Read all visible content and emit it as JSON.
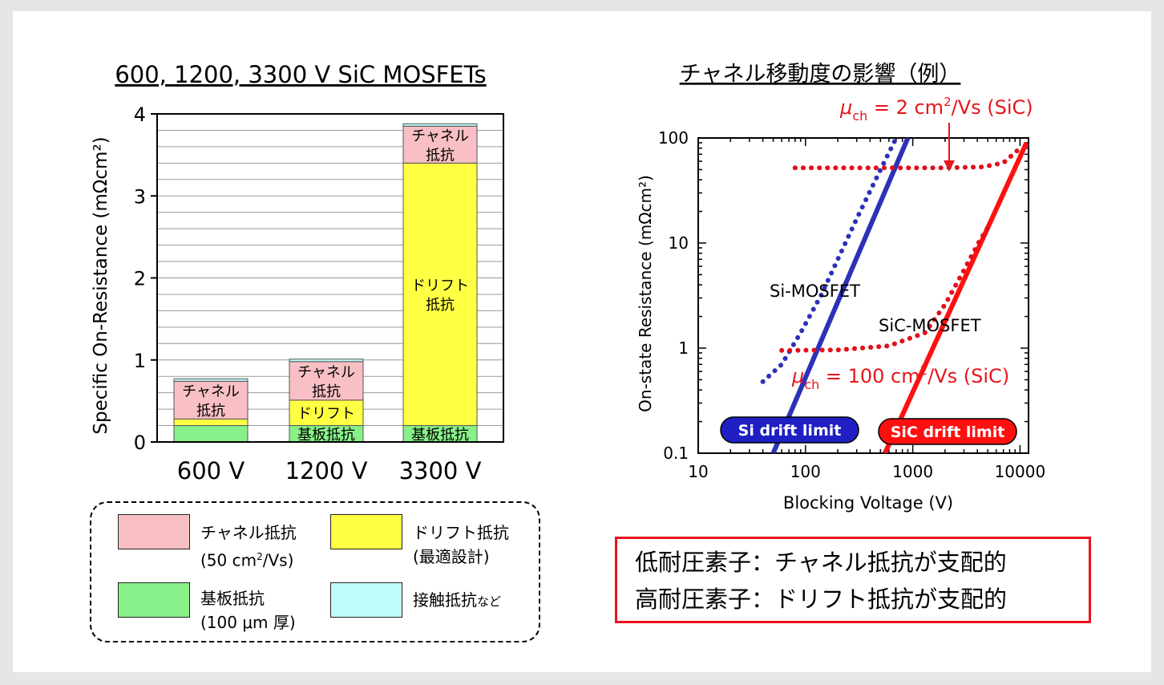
{
  "chart_data": [
    {
      "type": "bar",
      "stacked": true,
      "title": "600, 1200, 3300 V SiC MOSFETs",
      "ylabel": "Specific On-Resistance (mΩcm²)",
      "ylim": [
        0,
        4
      ],
      "yticks": [
        "0",
        "1",
        "2",
        "3",
        "4"
      ],
      "grid": "horizontal",
      "categories": [
        "600 V",
        "1200 V",
        "3300 V"
      ],
      "series": [
        {
          "name": "基板抵抗",
          "color": "#88f088",
          "values": [
            0.2,
            0.2,
            0.2
          ]
        },
        {
          "name": "ドリフト抵抗",
          "color": "#ffff44",
          "values": [
            0.08,
            0.31,
            3.2
          ]
        },
        {
          "name": "チャネル抵抗",
          "color": "#f8c0c4",
          "values": [
            0.46,
            0.47,
            0.45
          ]
        },
        {
          "name": "接触抵抗など",
          "color": "#c0fcfc",
          "values": [
            0.03,
            0.03,
            0.03
          ]
        }
      ],
      "segment_labels": [
        [
          "",
          "",
          "チャネル\n抵抗",
          ""
        ],
        [
          "基板抵抗",
          "ドリフト",
          "チャネル\n抵抗",
          ""
        ],
        [
          "基板抵抗",
          "ドリフト\n抵抗",
          "チャネル\n抵抗",
          ""
        ]
      ]
    },
    {
      "type": "line",
      "title": "チャネル移動度の影響（例）",
      "xlabel": "Blocking Voltage (V)",
      "ylabel": "On-state Resistance (mΩcm²)",
      "xscale": "log",
      "yscale": "log",
      "xlim": [
        10,
        12000
      ],
      "ylim": [
        0.1,
        100
      ],
      "xticks": [
        "10",
        "100",
        "1000",
        "10000"
      ],
      "yticks": [
        "0.1",
        "1",
        "10",
        "100"
      ],
      "series": [
        {
          "name": "Si drift limit",
          "color": "#2d31b8",
          "style": "solid",
          "points": [
            [
              50,
              0.1
            ],
            [
              900,
              100
            ]
          ]
        },
        {
          "name": "Si-MOSFET",
          "color": "#2d31b8",
          "style": "dotted",
          "points": [
            [
              40,
              0.48
            ],
            [
              60,
              0.7
            ],
            [
              90,
              1.4
            ],
            [
              140,
              3.2
            ],
            [
              200,
              7
            ],
            [
              300,
              17
            ],
            [
              450,
              40
            ],
            [
              700,
              100
            ]
          ]
        },
        {
          "name": "SiC drift limit",
          "color": "#ff1010",
          "style": "solid",
          "points": [
            [
              550,
              0.1
            ],
            [
              11500,
              90
            ]
          ]
        },
        {
          "name": "SiC-MOSFET (μch = 2 cm²/Vs)",
          "color": "#e0101a",
          "style": "dotted",
          "points": [
            [
              80,
              52
            ],
            [
              500,
              52
            ],
            [
              2000,
              52
            ],
            [
              4500,
              53
            ],
            [
              7000,
              58
            ],
            [
              10000,
              80
            ]
          ]
        },
        {
          "name": "SiC-MOSFET (μch = 100 cm²/Vs)",
          "color": "#e0101a",
          "style": "dotted",
          "points": [
            [
              60,
              0.95
            ],
            [
              200,
              0.96
            ],
            [
              600,
              1.05
            ],
            [
              1300,
              1.4
            ],
            [
              2000,
              2.6
            ],
            [
              3000,
              5.5
            ],
            [
              4200,
              10.5
            ],
            [
              5000,
              14
            ]
          ]
        }
      ],
      "annotations": {
        "si_mosfet": "Si-MOSFET",
        "sic_mosfet": "SiC-MOSFET",
        "mu_high_main": "μ",
        "mu_high_sub": "ch",
        "mu_high_rest": " = 2 cm",
        "mu_high_sup": "2",
        "mu_high_tail": "/Vs (SiC)",
        "mu_low_main": "μ",
        "mu_low_sub": "ch",
        "mu_low_rest": " = 100 cm",
        "mu_low_sup": "2",
        "mu_low_tail": "/Vs (SiC)",
        "si_limit_badge": "Si drift limit",
        "sic_limit_badge": "SiC drift limit"
      }
    }
  ],
  "legend": {
    "items": [
      {
        "label_line1": "チャネル抵抗",
        "label_line2": "(50 cm",
        "label_sup": "2",
        "label_line2_tail": "/Vs)",
        "color": "#f8c0c4"
      },
      {
        "label_line1": "ドリフト抵抗",
        "label_line2": "(最適設計)",
        "color": "#ffff44"
      },
      {
        "label_line1": "基板抵抗",
        "label_line2": "(100 μm 厚)",
        "color": "#88f088"
      },
      {
        "label_line1": "接触抵抗",
        "label_suffix": "など",
        "color": "#c0fcfc"
      }
    ]
  },
  "conclusion": {
    "line1": "低耐圧素子：チャネル抵抗が支配的",
    "line2": "高耐圧素子：ドリフト抵抗が支配的",
    "border_color": "#e8141b"
  },
  "colors": {
    "si": "#2d31b8",
    "sic": "#e0101a",
    "badge_si": "#1f1fc4",
    "badge_sic": "#ff1010"
  }
}
